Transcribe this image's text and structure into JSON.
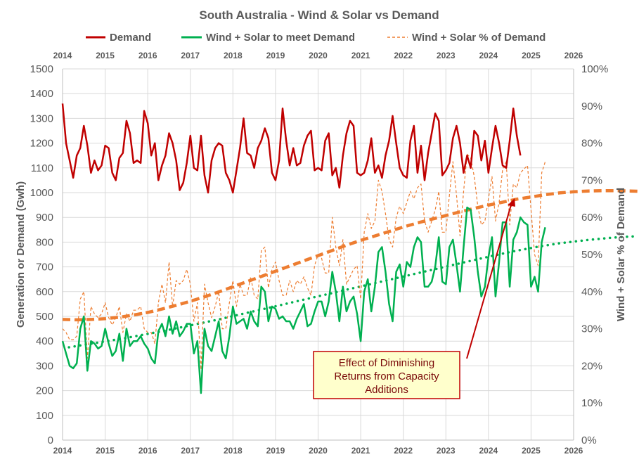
{
  "chart_data": {
    "type": "line",
    "title": "South Australia - Wind & Solar vs Demand",
    "ylabel": "Generation or Demand (Gwh)",
    "y2label": "Wind + Solar % of Demand",
    "ylim": [
      0,
      1500
    ],
    "y2lim": [
      0,
      100
    ],
    "xlim": [
      2014,
      2026
    ],
    "x_ticks": [
      "2014",
      "2015",
      "2016",
      "2017",
      "2018",
      "2019",
      "2020",
      "2021",
      "2022",
      "2023",
      "2024",
      "2025",
      "2026"
    ],
    "y_ticks": [
      "0",
      "100",
      "200",
      "300",
      "400",
      "500",
      "600",
      "700",
      "800",
      "900",
      "1000",
      "1100",
      "1200",
      "1300",
      "1400",
      "1500"
    ],
    "y2_ticks": [
      "0%",
      "10%",
      "20%",
      "30%",
      "40%",
      "50%",
      "60%",
      "70%",
      "80%",
      "90%",
      "100%"
    ],
    "grid": true,
    "legend_position": "top",
    "legend": [
      {
        "label": "Demand",
        "color": "#c00000",
        "style": "solid"
      },
      {
        "label": "Wind + Solar to meet Demand",
        "color": "#00b050",
        "style": "solid"
      },
      {
        "label": "Wind + Solar % of Demand",
        "color": "#ed7d31",
        "style": "dashed"
      }
    ],
    "annotation": "Effect of Diminishing Returns from Capacity Additions",
    "series": [
      {
        "name": "Demand",
        "axis": "left",
        "color": "#c00000",
        "style": "solid",
        "start_year": 2014.0,
        "values": [
          1360,
          1200,
          1130,
          1060,
          1150,
          1180,
          1270,
          1190,
          1080,
          1130,
          1090,
          1110,
          1190,
          1180,
          1080,
          1050,
          1140,
          1160,
          1290,
          1240,
          1120,
          1130,
          1120,
          1330,
          1280,
          1150,
          1200,
          1050,
          1110,
          1150,
          1240,
          1200,
          1130,
          1010,
          1040,
          1120,
          1230,
          1100,
          1090,
          1230,
          1070,
          1000,
          1130,
          1180,
          1200,
          1190,
          1080,
          1050,
          1000,
          1090,
          1180,
          1300,
          1160,
          1150,
          1100,
          1180,
          1210,
          1260,
          1220,
          1080,
          1050,
          1130,
          1340,
          1210,
          1110,
          1180,
          1110,
          1120,
          1190,
          1230,
          1250,
          1090,
          1100,
          1090,
          1210,
          1240,
          1070,
          1100,
          1020,
          1150,
          1240,
          1290,
          1270,
          1080,
          1070,
          1080,
          1130,
          1220,
          1080,
          1110,
          1060,
          1150,
          1210,
          1310,
          1200,
          1100,
          1070,
          1060,
          1210,
          1270,
          1080,
          1190,
          1050,
          1160,
          1240,
          1320,
          1290,
          1070,
          1090,
          1120,
          1220,
          1270,
          1200,
          1080,
          1150,
          1100,
          1250,
          1230,
          1130,
          1210,
          1080,
          1180,
          1270,
          1200,
          1110,
          1100,
          1210,
          1340,
          1230,
          1150
        ]
      },
      {
        "name": "Wind + Solar to meet Demand",
        "axis": "left",
        "color": "#00b050",
        "style": "solid",
        "start_year": 2014.0,
        "values": [
          400,
          350,
          300,
          290,
          310,
          450,
          500,
          280,
          400,
          390,
          370,
          380,
          450,
          390,
          340,
          360,
          430,
          320,
          450,
          380,
          400,
          400,
          420,
          390,
          370,
          330,
          310,
          440,
          470,
          420,
          500,
          430,
          480,
          420,
          440,
          470,
          470,
          350,
          400,
          190,
          450,
          380,
          360,
          420,
          480,
          360,
          330,
          420,
          540,
          470,
          480,
          490,
          450,
          520,
          480,
          460,
          620,
          600,
          480,
          540,
          530,
          490,
          500,
          480,
          480,
          450,
          490,
          520,
          550,
          460,
          470,
          520,
          560,
          560,
          500,
          560,
          680,
          600,
          480,
          620,
          520,
          560,
          580,
          510,
          400,
          600,
          650,
          520,
          620,
          760,
          780,
          680,
          550,
          480,
          680,
          710,
          620,
          720,
          700,
          780,
          820,
          800,
          620,
          620,
          640,
          700,
          820,
          640,
          630,
          780,
          810,
          710,
          600,
          780,
          940,
          930,
          820,
          680,
          580,
          620,
          740,
          820,
          580,
          720,
          880,
          880,
          620,
          810,
          840,
          900,
          880,
          870,
          620,
          660,
          600,
          800,
          860
        ]
      },
      {
        "name": "Wind + Solar % of Demand",
        "axis": "right",
        "color": "#ed7d31",
        "style": "dashed",
        "start_year": 2014.0,
        "values": [
          30,
          29,
          27,
          27,
          28,
          38,
          40,
          22,
          36,
          34,
          33,
          34,
          37,
          33,
          31,
          33,
          36,
          29,
          34,
          32,
          35,
          35,
          36,
          30,
          29,
          29,
          26,
          37,
          42,
          37,
          48,
          36,
          43,
          42,
          43,
          46,
          42,
          32,
          37,
          19,
          42,
          37,
          33,
          36,
          40,
          30,
          30,
          37,
          43,
          36,
          42,
          39,
          39,
          44,
          39,
          38,
          51,
          52,
          41,
          46,
          48,
          43,
          39,
          39,
          43,
          40,
          43,
          42,
          44,
          41,
          39,
          47,
          50,
          49,
          45,
          45,
          60,
          52,
          47,
          54,
          42,
          44,
          46,
          47,
          38,
          56,
          61,
          57,
          59,
          70,
          67,
          61,
          54,
          52,
          60,
          63,
          61,
          64,
          67,
          65,
          68,
          69,
          59,
          56,
          59,
          62,
          67,
          56,
          56,
          66,
          75,
          66,
          55,
          67,
          77,
          76,
          71,
          63,
          58,
          59,
          65,
          71,
          59,
          64,
          73,
          75,
          58,
          69,
          68,
          72,
          73,
          74,
          62,
          50,
          47,
          72,
          75
        ]
      },
      {
        "name": "",
        "axis": "left",
        "color": "#00b050",
        "style": "dotted",
        "role": "trend",
        "start_year": 2014.15,
        "values": [
          375,
          382,
          389,
          396,
          403,
          410,
          418,
          426,
          434,
          442,
          451,
          460,
          469,
          478,
          487,
          497,
          507,
          517,
          527,
          537,
          547,
          557,
          567,
          577,
          587,
          597,
          607,
          617,
          627,
          637,
          647,
          657,
          667,
          677,
          687,
          697,
          707,
          717,
          727,
          737,
          747,
          756,
          765,
          773,
          781,
          788,
          795,
          800,
          805,
          810,
          814,
          818,
          821,
          823
        ]
      },
      {
        "name": "",
        "axis": "right",
        "color": "#ed7d31",
        "style": "dashed-thick",
        "role": "trend",
        "start_year": 2014.0,
        "values": [
          32.5,
          32.4,
          32.5,
          32.7,
          33.1,
          33.7,
          34.4,
          35.3,
          36.3,
          37.4,
          38.6,
          39.9,
          41.3,
          42.7,
          44.1,
          45.5,
          46.9,
          48.3,
          49.7,
          51.1,
          52.5,
          53.8,
          55.0,
          56.2,
          57.4,
          58.5,
          59.5,
          60.5,
          61.5,
          62.4,
          63.3,
          64.1,
          64.9,
          65.5,
          66.1,
          66.6,
          66.9,
          67.1,
          67.2,
          67.2,
          67.1,
          67.0
        ]
      }
    ]
  }
}
